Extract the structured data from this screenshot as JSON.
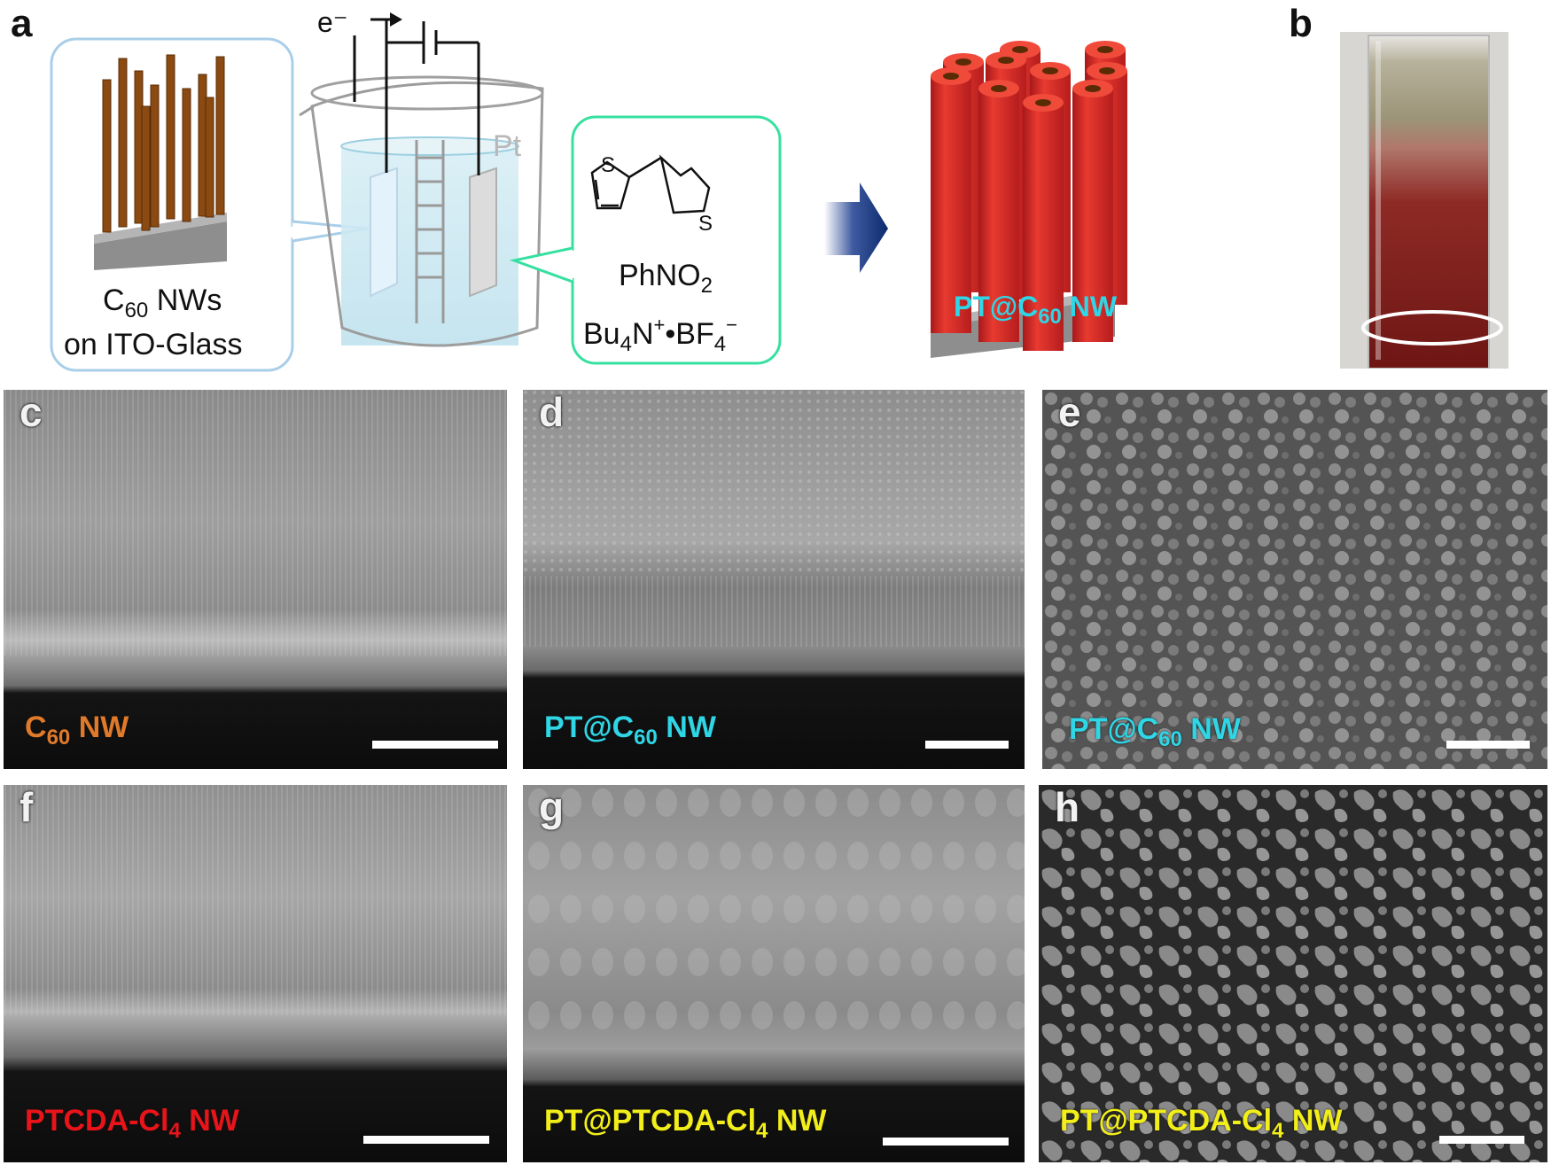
{
  "panels": {
    "a": {
      "letter": "a",
      "substrate_label_line1_pre": "C",
      "substrate_label_line1_sub": "60",
      "substrate_label_line1_post": " NWs",
      "substrate_label_line2": "on ITO-Glass",
      "electron_label": "e⁻",
      "pt_label": "Pt",
      "solvent": "PhNO",
      "solvent_sub": "2",
      "electrolyte_pre": "Bu",
      "electrolyte_sub1": "4",
      "electrolyte_mid": "N",
      "electrolyte_sup1": "+",
      "electrolyte_dot": "•BF",
      "electrolyte_sub2": "4",
      "electrolyte_sup2": "−",
      "thiophene_s": "S",
      "product_pre": "PT@C",
      "product_sub": "60",
      "product_post": " NW"
    },
    "b": {
      "letter": "b"
    },
    "c": {
      "letter": "c",
      "caption_pre": "C",
      "caption_sub": "60",
      "caption_post": " NW",
      "caption_color": "#e07a2a"
    },
    "d": {
      "letter": "d",
      "caption_pre": "PT@C",
      "caption_sub": "60",
      "caption_post": " NW",
      "caption_color": "#2fd6e6"
    },
    "e": {
      "letter": "e",
      "caption_pre": "PT@C",
      "caption_sub": "60",
      "caption_post": " NW",
      "caption_color": "#2fd6e6"
    },
    "f": {
      "letter": "f",
      "caption_pre": "PTCDA-Cl",
      "caption_sub": "4",
      "caption_post": " NW",
      "caption_color": "#e8141a"
    },
    "g": {
      "letter": "g",
      "caption_pre": "PT@PTCDA-Cl",
      "caption_sub": "4",
      "caption_post": " NW",
      "caption_color": "#f2ee1a"
    },
    "h": {
      "letter": "h",
      "caption_pre": "PT@PTCDA-Cl",
      "caption_sub": "4",
      "caption_post": " NW",
      "caption_color": "#f2ee1a"
    }
  }
}
